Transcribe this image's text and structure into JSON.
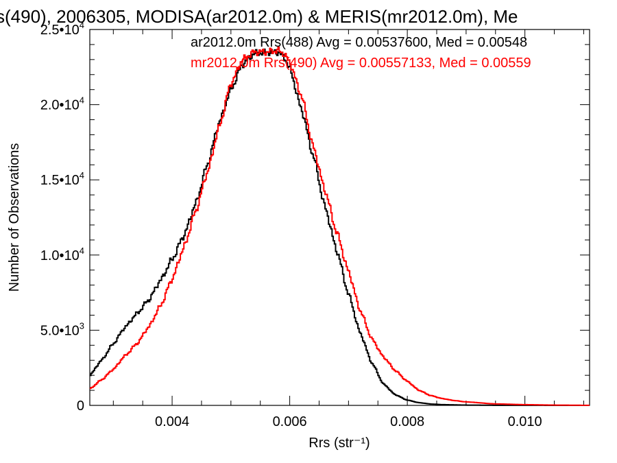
{
  "chart_data": {
    "type": "line",
    "title": "s(490), 2006305, MODISA(ar2012.0m) & MERIS(mr2012.0m), Me",
    "xlabel": "Rrs (str⁻¹)",
    "ylabel": "Number of Observations",
    "xlim": [
      0.0026,
      0.0111
    ],
    "ylim": [
      0,
      25000
    ],
    "x_ticks": [
      {
        "value": 0.004,
        "label": "0.004"
      },
      {
        "value": 0.006,
        "label": "0.006"
      },
      {
        "value": 0.008,
        "label": "0.008"
      },
      {
        "value": 0.01,
        "label": "0.010"
      }
    ],
    "y_ticks": [
      {
        "value": 0,
        "base": "0",
        "exp": ""
      },
      {
        "value": 5000,
        "base": "5.0•10",
        "exp": "3"
      },
      {
        "value": 10000,
        "base": "1.0•10",
        "exp": "4"
      },
      {
        "value": 15000,
        "base": "1.5•10",
        "exp": "4"
      },
      {
        "value": 20000,
        "base": "2.0•10",
        "exp": "4"
      },
      {
        "value": 25000,
        "base": "2.5•10",
        "exp": "4"
      }
    ],
    "series": [
      {
        "name": "ar2012.0m Rrs(488) Avg = 0.00537600, Med = 0.00548",
        "color": "#000000",
        "points": [
          [
            0.0026,
            2000
          ],
          [
            0.0028,
            3000
          ],
          [
            0.003,
            4100
          ],
          [
            0.0032,
            5200
          ],
          [
            0.0034,
            6100
          ],
          [
            0.0036,
            7000
          ],
          [
            0.0038,
            8300
          ],
          [
            0.004,
            9700
          ],
          [
            0.0042,
            11300
          ],
          [
            0.0044,
            13400
          ],
          [
            0.0046,
            16000
          ],
          [
            0.0048,
            18800
          ],
          [
            0.005,
            21000
          ],
          [
            0.0052,
            22700
          ],
          [
            0.0054,
            23400
          ],
          [
            0.0056,
            23500
          ],
          [
            0.0058,
            23500
          ],
          [
            0.0059,
            23200
          ],
          [
            0.006,
            22400
          ],
          [
            0.0062,
            19700
          ],
          [
            0.0064,
            16600
          ],
          [
            0.0066,
            13200
          ],
          [
            0.0068,
            10300
          ],
          [
            0.007,
            7400
          ],
          [
            0.0072,
            4800
          ],
          [
            0.0074,
            2800
          ],
          [
            0.0076,
            1400
          ],
          [
            0.0078,
            700
          ],
          [
            0.008,
            350
          ],
          [
            0.0082,
            180
          ],
          [
            0.0084,
            90
          ],
          [
            0.0086,
            50
          ],
          [
            0.009,
            20
          ],
          [
            0.0095,
            8
          ],
          [
            0.01,
            4
          ],
          [
            0.0111,
            0
          ]
        ]
      },
      {
        "name": "mr2012.0m Rrs(490) Avg = 0.00557133, Med = 0.00559",
        "color": "#ff0000",
        "points": [
          [
            0.0026,
            1100
          ],
          [
            0.0028,
            1700
          ],
          [
            0.003,
            2400
          ],
          [
            0.0032,
            3300
          ],
          [
            0.0034,
            4100
          ],
          [
            0.0036,
            5200
          ],
          [
            0.0038,
            6600
          ],
          [
            0.004,
            8400
          ],
          [
            0.0042,
            10500
          ],
          [
            0.0044,
            12900
          ],
          [
            0.0046,
            15500
          ],
          [
            0.0048,
            18500
          ],
          [
            0.005,
            21400
          ],
          [
            0.0052,
            23000
          ],
          [
            0.0054,
            23500
          ],
          [
            0.0056,
            23500
          ],
          [
            0.0058,
            23600
          ],
          [
            0.0059,
            23400
          ],
          [
            0.006,
            22800
          ],
          [
            0.0062,
            20600
          ],
          [
            0.0064,
            17200
          ],
          [
            0.0066,
            14300
          ],
          [
            0.0068,
            11500
          ],
          [
            0.007,
            8900
          ],
          [
            0.0072,
            6300
          ],
          [
            0.0074,
            4400
          ],
          [
            0.0076,
            3200
          ],
          [
            0.0078,
            2300
          ],
          [
            0.008,
            1600
          ],
          [
            0.0082,
            1000
          ],
          [
            0.0084,
            650
          ],
          [
            0.0086,
            450
          ],
          [
            0.0088,
            320
          ],
          [
            0.009,
            230
          ],
          [
            0.0095,
            100
          ],
          [
            0.01,
            50
          ],
          [
            0.0105,
            20
          ],
          [
            0.0111,
            5
          ]
        ]
      }
    ],
    "legend": "top-right"
  }
}
